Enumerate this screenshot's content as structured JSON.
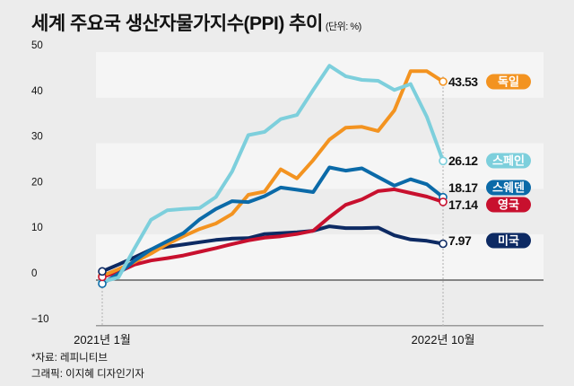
{
  "header": {
    "title": "세계 주요국 생산자물가지수(PPI) 추이",
    "unit": "(단위: %)"
  },
  "footer": {
    "source": "*자료: 레피니티브",
    "credit": "그래픽: 이지혜 디자인기자"
  },
  "chart_data": {
    "type": "line",
    "title": "세계 주요국 생산자물가지수(PPI) 추이",
    "unit": "%",
    "xlabel": "",
    "ylabel": "",
    "ylim": [
      -10,
      50
    ],
    "yticks": [
      50,
      40,
      30,
      20,
      10,
      0,
      -10
    ],
    "ytick_labels": [
      "50",
      "40",
      "30",
      "20",
      "10",
      "0",
      "−10"
    ],
    "x_start_label": "2021년 1월",
    "x_end_label": "2022년 10월",
    "x": [
      "2021-01",
      "2021-02",
      "2021-03",
      "2021-04",
      "2021-05",
      "2021-06",
      "2021-07",
      "2021-08",
      "2021-09",
      "2021-10",
      "2021-11",
      "2021-12",
      "2022-01",
      "2022-02",
      "2022-03",
      "2022-04",
      "2022-05",
      "2022-06",
      "2022-07",
      "2022-08",
      "2022-09",
      "2022-10"
    ],
    "grid": "alternating horizontal bands",
    "legend": "right (end labels)",
    "series": [
      {
        "name": "독일",
        "color": "#f39320",
        "end_label": "43.53",
        "values": [
          0.9,
          2.4,
          4.0,
          5.8,
          7.9,
          9.6,
          11.2,
          12.4,
          14.5,
          18.7,
          19.4,
          24.3,
          22.3,
          26.3,
          30.8,
          33.4,
          33.6,
          32.7,
          37.2,
          45.8,
          45.8,
          43.53
        ]
      },
      {
        "name": "스페인",
        "color": "#7dcfdc",
        "end_label": "26.12",
        "values": [
          -0.4,
          0.6,
          7.0,
          13.2,
          15.3,
          15.6,
          15.8,
          18.2,
          23.8,
          31.8,
          32.5,
          35.3,
          36.2,
          41.7,
          47.0,
          44.7,
          43.9,
          43.7,
          41.7,
          43.0,
          35.8,
          26.12
        ]
      },
      {
        "name": "스웨덴",
        "color": "#0b6aa8",
        "end_label": "18.17",
        "values": [
          -0.8,
          1.4,
          4.3,
          6.7,
          8.5,
          10.3,
          13.3,
          15.6,
          17.3,
          17.1,
          18.4,
          20.3,
          19.8,
          19.3,
          24.7,
          24.0,
          24.5,
          22.6,
          20.7,
          22.1,
          21.0,
          18.17
        ]
      },
      {
        "name": "영국",
        "color": "#c8102e",
        "end_label": "17.14",
        "values": [
          0.7,
          1.8,
          3.4,
          4.3,
          4.8,
          5.4,
          6.2,
          7.0,
          7.9,
          8.7,
          9.3,
          9.6,
          10.1,
          10.8,
          13.8,
          16.5,
          17.7,
          19.5,
          19.9,
          19.1,
          18.3,
          17.14
        ]
      },
      {
        "name": "미국",
        "color": "#0d2a63",
        "end_label": "7.97",
        "values": [
          1.9,
          3.4,
          5.0,
          6.7,
          7.3,
          7.8,
          8.3,
          8.8,
          9.1,
          9.2,
          10.1,
          10.3,
          10.5,
          10.8,
          11.8,
          11.4,
          11.4,
          11.5,
          9.8,
          8.9,
          8.6,
          7.97
        ]
      }
    ]
  },
  "colors": {
    "background": "#ececec",
    "band_light": "#f5f5f5",
    "zero_line": "#444444",
    "axis_line": "#999999",
    "guide_line": "#bbbbbb"
  }
}
